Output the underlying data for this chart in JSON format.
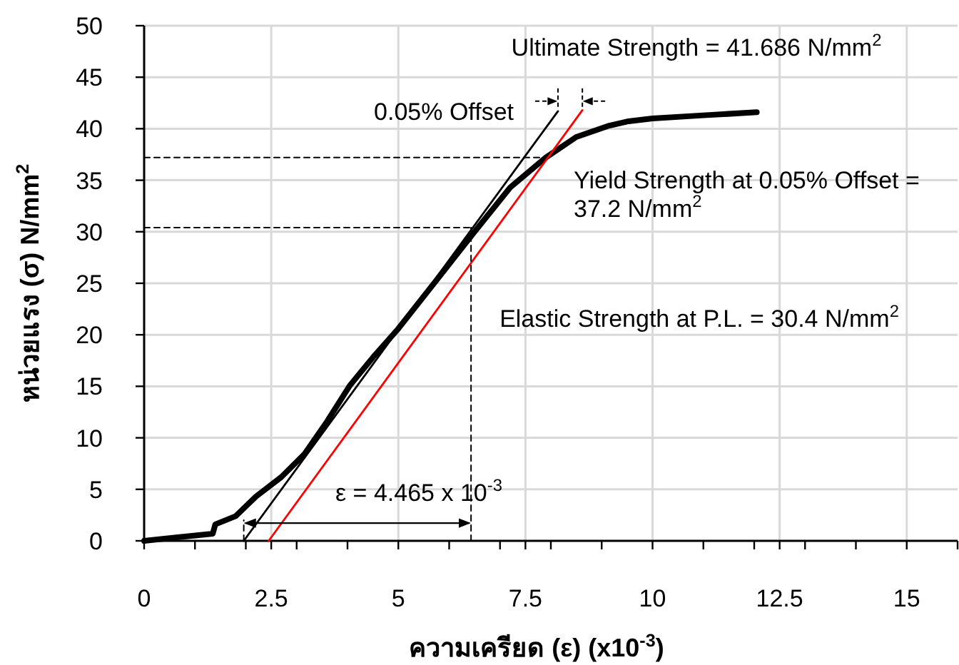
{
  "chart_data": {
    "type": "line",
    "xlabel": "ความเครียด (ε) (x10$^{-3}$)",
    "ylabel": "หน่วยแรง (σ) N/mm$^{2}$",
    "xlim": [
      0,
      16
    ],
    "ylim": [
      0,
      50
    ],
    "xticks": [
      0,
      {
        "value": 1,
        "label": null
      },
      {
        "value": 2,
        "label": null
      },
      2.5,
      {
        "value": 3,
        "label": null
      },
      {
        "value": 4,
        "label": null
      },
      5,
      {
        "value": 6,
        "label": null
      },
      {
        "value": 7,
        "label": null
      },
      7.5,
      {
        "value": 8,
        "label": null
      },
      {
        "value": 9,
        "label": null
      },
      10,
      {
        "value": 11,
        "label": null
      },
      {
        "value": 12,
        "label": null
      },
      12.5,
      {
        "value": 13,
        "label": null
      },
      {
        "value": 14,
        "label": null
      },
      15,
      {
        "value": 16,
        "label": null
      }
    ],
    "yticks": [
      0,
      5,
      10,
      15,
      20,
      25,
      30,
      35,
      40,
      45,
      50
    ],
    "grid": true,
    "series": [
      {
        "color": "#000000",
        "x": [
          0,
          1.35,
          1.4,
          1.8,
          2.2,
          2.7,
          3.15,
          3.6,
          4.05,
          4.5,
          5.0,
          5.75,
          6.5,
          7.2,
          7.9,
          8.5,
          9.15,
          9.5,
          10.0,
          11.0,
          12.05
        ],
        "values": [
          0,
          0.7,
          1.6,
          2.4,
          4.3,
          6.2,
          8.4,
          11.6,
          15.1,
          17.8,
          20.6,
          25.3,
          30.0,
          34.3,
          37.2,
          39.2,
          40.3,
          40.7,
          41.0,
          41.3,
          41.6
        ]
      },
      {
        "color": "#000000",
        "x": [
          1.96,
          8.14
        ],
        "values": [
          0,
          41.7
        ]
      },
      {
        "color": "#ff0000",
        "x": [
          2.45,
          8.62
        ],
        "values": [
          0,
          41.8
        ]
      },
      {
        "color": "#000000",
        "line_style": "dashed",
        "x": [
          0,
          7.9
        ],
        "values": [
          37.2,
          37.2
        ]
      },
      {
        "color": "#000000",
        "line_style": "dashed",
        "x": [
          0,
          6.43
        ],
        "values": [
          30.4,
          30.4
        ]
      },
      {
        "color": "#000000",
        "line_style": "dashed",
        "x": [
          6.43,
          6.43
        ],
        "values": [
          0,
          30.4
        ]
      },
      {
        "color": "#000000",
        "line_style": "dashed",
        "x": [
          1.96,
          1.96
        ],
        "values": [
          0,
          2.0
        ]
      }
    ],
    "annotations": [
      "Ultimate Strength = 41.686 N/mm$^{2}$",
      "0.05% Offset",
      "Yield Strength at 0.05% Offset = 37.2 N/mm$^{2}$",
      "Elastic Strength at P.L. = 30.4 N/mm$^{2}$",
      "ε = 4.465 x 10$^{-3}$"
    ]
  }
}
